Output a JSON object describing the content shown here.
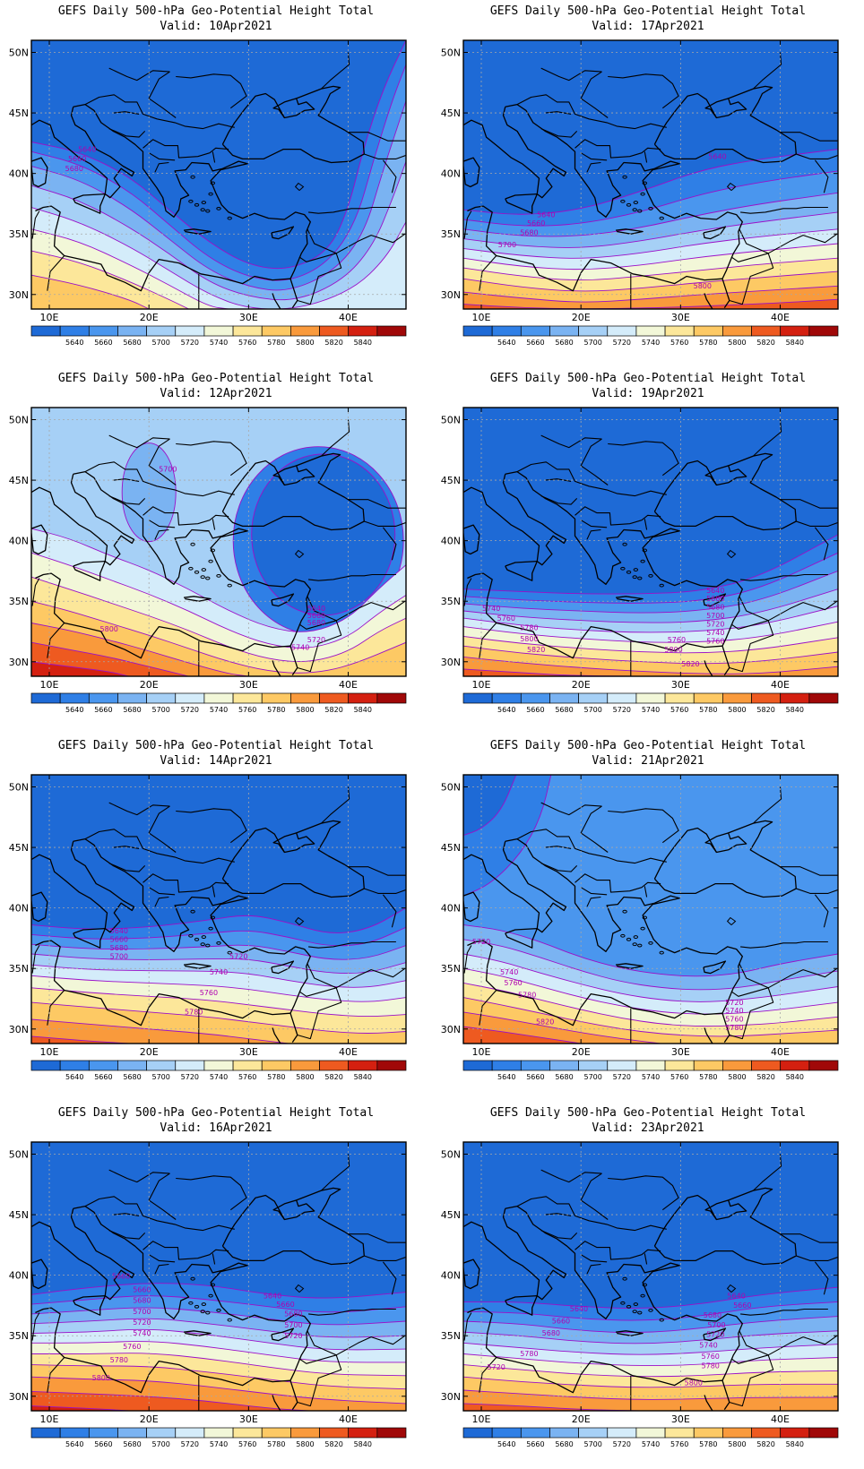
{
  "title_line1": "GEFS Daily 500-hPa Geo-Potential Height Total",
  "valid_prefix": "Valid: ",
  "lon_ticks": [
    {
      "label": "10E",
      "value": 10
    },
    {
      "label": "20E",
      "value": 20
    },
    {
      "label": "30E",
      "value": 30
    },
    {
      "label": "40E",
      "value": 40
    }
  ],
  "lat_ticks": [
    {
      "label": "50N",
      "value": 50
    },
    {
      "label": "45N",
      "value": 45
    },
    {
      "label": "40N",
      "value": 40
    },
    {
      "label": "35N",
      "value": 35
    },
    {
      "label": "30N",
      "value": 30
    }
  ],
  "colorbar": {
    "labels": [
      "5640",
      "5660",
      "5680",
      "5700",
      "5720",
      "5740",
      "5760",
      "5780",
      "5800",
      "5820",
      "5840"
    ],
    "colors": [
      "#1e6ad6",
      "#2f7fe6",
      "#4a96ee",
      "#7ab3f2",
      "#a6d0f6",
      "#d4ecfa",
      "#f2f7d8",
      "#fce79a",
      "#fdc964",
      "#f99a3c",
      "#ee5a20",
      "#d42010",
      "#a00808"
    ]
  },
  "contour_color": "#9b10c8",
  "panels": [
    {
      "valid": "10Apr2021",
      "labels": [
        {
          "text": "5640",
          "lon": 13.8,
          "lat": 41.8
        },
        {
          "text": "5660",
          "lon": 12.8,
          "lat": 41.0
        },
        {
          "text": "5680",
          "lon": 12.5,
          "lat": 40.2
        }
      ]
    },
    {
      "valid": "17Apr2021",
      "labels": [
        {
          "text": "5640",
          "lon": 33.7,
          "lat": 41.2
        },
        {
          "text": "5640",
          "lon": 16.5,
          "lat": 36.4
        },
        {
          "text": "5660",
          "lon": 15.5,
          "lat": 35.7
        },
        {
          "text": "5680",
          "lon": 14.8,
          "lat": 34.9
        },
        {
          "text": "5700",
          "lon": 12.6,
          "lat": 33.9
        },
        {
          "text": "5800",
          "lon": 32.2,
          "lat": 30.5
        }
      ]
    },
    {
      "valid": "12Apr2021",
      "labels": [
        {
          "text": "5700",
          "lon": 21.9,
          "lat": 45.7
        },
        {
          "text": "5800",
          "lon": 16.0,
          "lat": 32.5
        },
        {
          "text": "5640",
          "lon": 36.8,
          "lat": 34.2
        },
        {
          "text": "5660",
          "lon": 36.8,
          "lat": 33.6
        },
        {
          "text": "5680",
          "lon": 36.8,
          "lat": 33.0
        },
        {
          "text": "5720",
          "lon": 36.8,
          "lat": 31.6
        },
        {
          "text": "5740",
          "lon": 35.2,
          "lat": 31.0
        }
      ]
    },
    {
      "valid": "19Apr2021",
      "labels": [
        {
          "text": "5640",
          "lon": 33.5,
          "lat": 35.7
        },
        {
          "text": "5660",
          "lon": 33.5,
          "lat": 35.0
        },
        {
          "text": "5680",
          "lon": 33.5,
          "lat": 34.3
        },
        {
          "text": "5700",
          "lon": 33.5,
          "lat": 33.6
        },
        {
          "text": "5720",
          "lon": 33.5,
          "lat": 32.9
        },
        {
          "text": "5740",
          "lon": 33.5,
          "lat": 32.2
        },
        {
          "text": "5760",
          "lon": 33.5,
          "lat": 31.5
        },
        {
          "text": "5740",
          "lon": 11.0,
          "lat": 34.2
        },
        {
          "text": "5760",
          "lon": 12.5,
          "lat": 33.4
        },
        {
          "text": "5780",
          "lon": 14.8,
          "lat": 32.6
        },
        {
          "text": "5800",
          "lon": 14.8,
          "lat": 31.7
        },
        {
          "text": "5820",
          "lon": 15.5,
          "lat": 30.8
        },
        {
          "text": "5760",
          "lon": 29.6,
          "lat": 31.6
        },
        {
          "text": "5800",
          "lon": 29.3,
          "lat": 30.8
        },
        {
          "text": "5820",
          "lon": 31.0,
          "lat": 29.6
        }
      ]
    },
    {
      "valid": "14Apr2021",
      "labels": [
        {
          "text": "5640",
          "lon": 17.0,
          "lat": 37.9
        },
        {
          "text": "5660",
          "lon": 17.0,
          "lat": 37.2
        },
        {
          "text": "5680",
          "lon": 17.0,
          "lat": 36.5
        },
        {
          "text": "5700",
          "lon": 17.0,
          "lat": 35.8
        },
        {
          "text": "5720",
          "lon": 29.0,
          "lat": 35.8
        },
        {
          "text": "5740",
          "lon": 27.0,
          "lat": 34.5
        },
        {
          "text": "5760",
          "lon": 26.0,
          "lat": 32.8
        },
        {
          "text": "5780",
          "lon": 24.5,
          "lat": 31.2
        }
      ]
    },
    {
      "valid": "21Apr2021",
      "labels": [
        {
          "text": "5720",
          "lon": 10.0,
          "lat": 37.0
        },
        {
          "text": "5740",
          "lon": 12.8,
          "lat": 34.5
        },
        {
          "text": "5760",
          "lon": 13.2,
          "lat": 33.6
        },
        {
          "text": "5780",
          "lon": 14.6,
          "lat": 32.6
        },
        {
          "text": "5820",
          "lon": 16.4,
          "lat": 30.4
        },
        {
          "text": "5720",
          "lon": 35.4,
          "lat": 32.0
        },
        {
          "text": "5740",
          "lon": 35.4,
          "lat": 31.3
        },
        {
          "text": "5760",
          "lon": 35.4,
          "lat": 30.6
        },
        {
          "text": "5780",
          "lon": 35.4,
          "lat": 29.9
        }
      ]
    },
    {
      "valid": "16Apr2021",
      "labels": [
        {
          "text": "5660",
          "lon": 17.2,
          "lat": 39.7
        },
        {
          "text": "5660",
          "lon": 19.3,
          "lat": 38.6
        },
        {
          "text": "5680",
          "lon": 19.3,
          "lat": 37.7
        },
        {
          "text": "5700",
          "lon": 19.3,
          "lat": 36.8
        },
        {
          "text": "5720",
          "lon": 19.3,
          "lat": 35.9
        },
        {
          "text": "5740",
          "lon": 19.3,
          "lat": 35.0
        },
        {
          "text": "5760",
          "lon": 18.3,
          "lat": 33.9
        },
        {
          "text": "5780",
          "lon": 17.0,
          "lat": 32.8
        },
        {
          "text": "5800",
          "lon": 15.2,
          "lat": 31.3
        },
        {
          "text": "5640",
          "lon": 32.4,
          "lat": 38.1
        },
        {
          "text": "5660",
          "lon": 33.7,
          "lat": 37.4
        },
        {
          "text": "5680",
          "lon": 34.5,
          "lat": 36.6
        },
        {
          "text": "5700",
          "lon": 34.5,
          "lat": 35.7
        },
        {
          "text": "5720",
          "lon": 34.5,
          "lat": 34.8
        }
      ]
    },
    {
      "valid": "23Apr2021",
      "labels": [
        {
          "text": "5640",
          "lon": 35.6,
          "lat": 38.1
        },
        {
          "text": "5660",
          "lon": 36.2,
          "lat": 37.3
        },
        {
          "text": "5640",
          "lon": 19.8,
          "lat": 37.0
        },
        {
          "text": "5660",
          "lon": 18.0,
          "lat": 36.0
        },
        {
          "text": "5680",
          "lon": 17.0,
          "lat": 35.0
        },
        {
          "text": "5680",
          "lon": 33.2,
          "lat": 36.5
        },
        {
          "text": "5700",
          "lon": 33.6,
          "lat": 35.7
        },
        {
          "text": "5720",
          "lon": 33.5,
          "lat": 34.9
        },
        {
          "text": "5740",
          "lon": 32.8,
          "lat": 34.0
        },
        {
          "text": "5760",
          "lon": 33.0,
          "lat": 33.1
        },
        {
          "text": "5780",
          "lon": 33.0,
          "lat": 32.3
        },
        {
          "text": "5800",
          "lon": 31.3,
          "lat": 30.9
        },
        {
          "text": "5780",
          "lon": 14.8,
          "lat": 33.3
        },
        {
          "text": "5720",
          "lon": 11.5,
          "lat": 32.2
        }
      ]
    }
  ]
}
